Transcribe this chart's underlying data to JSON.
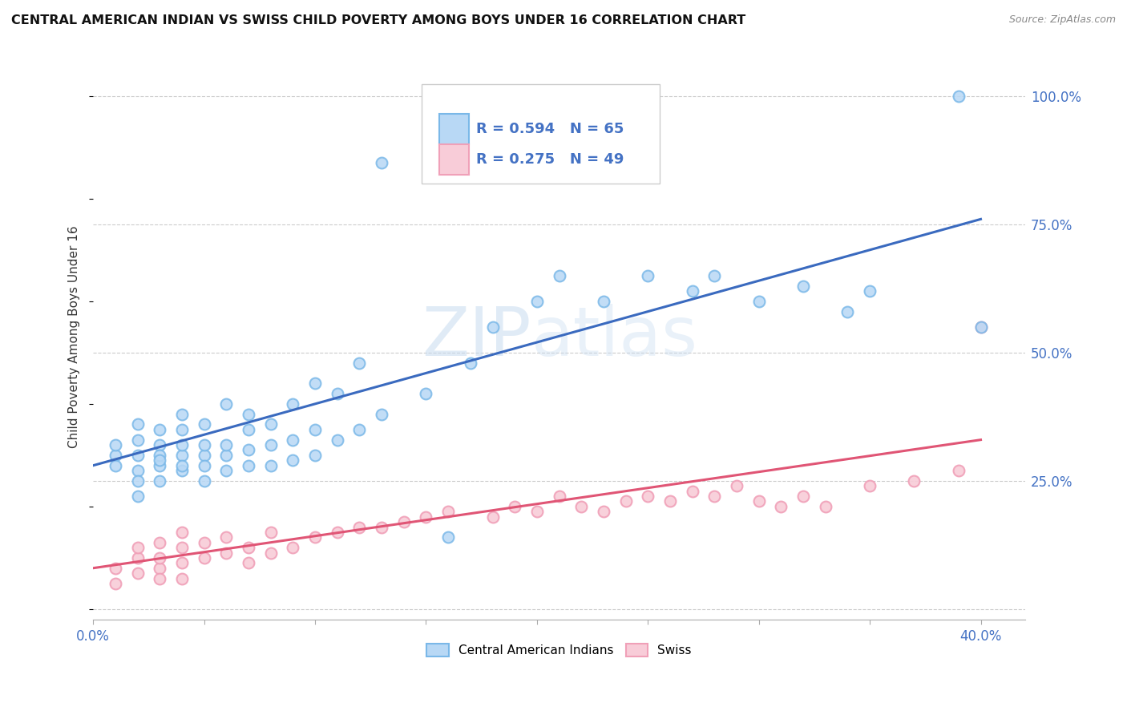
{
  "title": "CENTRAL AMERICAN INDIAN VS SWISS CHILD POVERTY AMONG BOYS UNDER 16 CORRELATION CHART",
  "source": "Source: ZipAtlas.com",
  "ylabel": "Child Poverty Among Boys Under 16",
  "xlim": [
    0.0,
    0.42
  ],
  "ylim": [
    -0.02,
    1.08
  ],
  "xticks": [
    0.0,
    0.05,
    0.1,
    0.15,
    0.2,
    0.25,
    0.3,
    0.35,
    0.4
  ],
  "xtick_labels": [
    "0.0%",
    "",
    "",
    "",
    "",
    "",
    "",
    "",
    "40.0%"
  ],
  "ytick_positions": [
    0.0,
    0.25,
    0.5,
    0.75,
    1.0
  ],
  "ytick_labels": [
    "",
    "25.0%",
    "50.0%",
    "75.0%",
    "100.0%"
  ],
  "blue_color": "#7ab8e8",
  "blue_fill": "#b8d8f5",
  "pink_color": "#f0a0b8",
  "pink_fill": "#f8ccd8",
  "trend_blue": "#3a6abf",
  "trend_pink": "#e05575",
  "watermark_text": "ZIPatlas",
  "legend_R_blue": "R = 0.594",
  "legend_N_blue": "N = 65",
  "legend_R_pink": "R = 0.275",
  "legend_N_pink": "N = 49",
  "legend_text_color": "#4472c4",
  "blue_scatter_x": [
    0.01,
    0.01,
    0.01,
    0.02,
    0.02,
    0.02,
    0.02,
    0.02,
    0.02,
    0.03,
    0.03,
    0.03,
    0.03,
    0.03,
    0.03,
    0.04,
    0.04,
    0.04,
    0.04,
    0.04,
    0.04,
    0.05,
    0.05,
    0.05,
    0.05,
    0.05,
    0.06,
    0.06,
    0.06,
    0.06,
    0.07,
    0.07,
    0.07,
    0.07,
    0.08,
    0.08,
    0.08,
    0.09,
    0.09,
    0.09,
    0.1,
    0.1,
    0.1,
    0.11,
    0.11,
    0.12,
    0.12,
    0.13,
    0.15,
    0.16,
    0.17,
    0.18,
    0.2,
    0.21,
    0.23,
    0.25,
    0.27,
    0.28,
    0.3,
    0.32,
    0.34,
    0.35,
    0.39,
    0.4,
    0.13
  ],
  "blue_scatter_y": [
    0.3,
    0.32,
    0.28,
    0.3,
    0.27,
    0.33,
    0.36,
    0.22,
    0.25,
    0.28,
    0.32,
    0.3,
    0.25,
    0.35,
    0.29,
    0.27,
    0.3,
    0.32,
    0.35,
    0.28,
    0.38,
    0.25,
    0.3,
    0.32,
    0.28,
    0.36,
    0.27,
    0.3,
    0.32,
    0.4,
    0.28,
    0.31,
    0.35,
    0.38,
    0.28,
    0.32,
    0.36,
    0.29,
    0.33,
    0.4,
    0.3,
    0.35,
    0.44,
    0.33,
    0.42,
    0.35,
    0.48,
    0.38,
    0.42,
    0.14,
    0.48,
    0.55,
    0.6,
    0.65,
    0.6,
    0.65,
    0.62,
    0.65,
    0.6,
    0.63,
    0.58,
    0.62,
    1.0,
    0.55,
    0.87
  ],
  "pink_scatter_x": [
    0.01,
    0.01,
    0.02,
    0.02,
    0.02,
    0.03,
    0.03,
    0.03,
    0.03,
    0.04,
    0.04,
    0.04,
    0.04,
    0.05,
    0.05,
    0.06,
    0.06,
    0.07,
    0.07,
    0.08,
    0.08,
    0.09,
    0.1,
    0.11,
    0.12,
    0.13,
    0.14,
    0.15,
    0.16,
    0.18,
    0.19,
    0.2,
    0.21,
    0.22,
    0.23,
    0.24,
    0.25,
    0.26,
    0.27,
    0.28,
    0.29,
    0.3,
    0.31,
    0.32,
    0.33,
    0.35,
    0.37,
    0.39,
    0.4
  ],
  "pink_scatter_y": [
    0.08,
    0.05,
    0.1,
    0.07,
    0.12,
    0.08,
    0.1,
    0.06,
    0.13,
    0.09,
    0.12,
    0.06,
    0.15,
    0.1,
    0.13,
    0.11,
    0.14,
    0.09,
    0.12,
    0.11,
    0.15,
    0.12,
    0.14,
    0.15,
    0.16,
    0.16,
    0.17,
    0.18,
    0.19,
    0.18,
    0.2,
    0.19,
    0.22,
    0.2,
    0.19,
    0.21,
    0.22,
    0.21,
    0.23,
    0.22,
    0.24,
    0.21,
    0.2,
    0.22,
    0.2,
    0.24,
    0.25,
    0.27,
    0.55
  ],
  "blue_trend_x": [
    0.0,
    0.4
  ],
  "blue_trend_y": [
    0.28,
    0.76
  ],
  "pink_trend_x": [
    0.0,
    0.4
  ],
  "pink_trend_y": [
    0.08,
    0.33
  ],
  "background_color": "#ffffff",
  "grid_color": "#cccccc"
}
